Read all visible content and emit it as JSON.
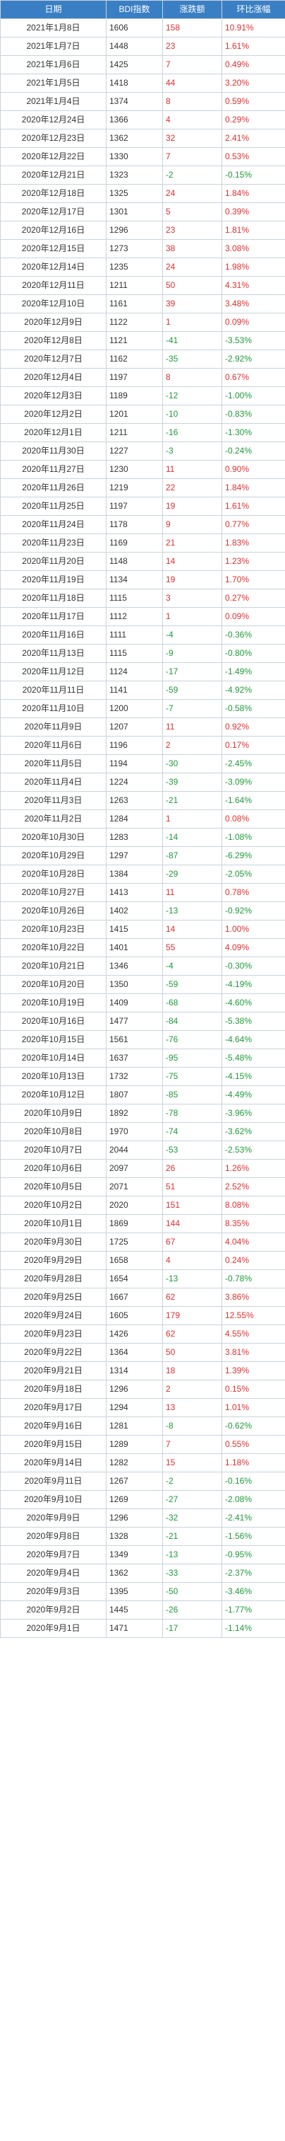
{
  "header": {
    "date": "日期",
    "index": "BDI指数",
    "change": "涨跌额",
    "pct": "环比涨幅"
  },
  "colors": {
    "header_bg": "#3a7fc4",
    "up": "#e03030",
    "down": "#1f9a3a"
  },
  "rows": [
    {
      "date": "2021年1月8日",
      "index": "1606",
      "change": "158",
      "pct": "10.91%"
    },
    {
      "date": "2021年1月7日",
      "index": "1448",
      "change": "23",
      "pct": "1.61%"
    },
    {
      "date": "2021年1月6日",
      "index": "1425",
      "change": "7",
      "pct": "0.49%"
    },
    {
      "date": "2021年1月5日",
      "index": "1418",
      "change": "44",
      "pct": "3.20%"
    },
    {
      "date": "2021年1月4日",
      "index": "1374",
      "change": "8",
      "pct": "0.59%"
    },
    {
      "date": "2020年12月24日",
      "index": "1366",
      "change": "4",
      "pct": "0.29%"
    },
    {
      "date": "2020年12月23日",
      "index": "1362",
      "change": "32",
      "pct": "2.41%"
    },
    {
      "date": "2020年12月22日",
      "index": "1330",
      "change": "7",
      "pct": "0.53%"
    },
    {
      "date": "2020年12月21日",
      "index": "1323",
      "change": "-2",
      "pct": "-0.15%"
    },
    {
      "date": "2020年12月18日",
      "index": "1325",
      "change": "24",
      "pct": "1.84%"
    },
    {
      "date": "2020年12月17日",
      "index": "1301",
      "change": "5",
      "pct": "0.39%"
    },
    {
      "date": "2020年12月16日",
      "index": "1296",
      "change": "23",
      "pct": "1.81%"
    },
    {
      "date": "2020年12月15日",
      "index": "1273",
      "change": "38",
      "pct": "3.08%"
    },
    {
      "date": "2020年12月14日",
      "index": "1235",
      "change": "24",
      "pct": "1.98%"
    },
    {
      "date": "2020年12月11日",
      "index": "1211",
      "change": "50",
      "pct": "4.31%"
    },
    {
      "date": "2020年12月10日",
      "index": "1161",
      "change": "39",
      "pct": "3.48%"
    },
    {
      "date": "2020年12月9日",
      "index": "1122",
      "change": "1",
      "pct": "0.09%"
    },
    {
      "date": "2020年12月8日",
      "index": "1121",
      "change": "-41",
      "pct": "-3.53%"
    },
    {
      "date": "2020年12月7日",
      "index": "1162",
      "change": "-35",
      "pct": "-2.92%"
    },
    {
      "date": "2020年12月4日",
      "index": "1197",
      "change": "8",
      "pct": "0.67%"
    },
    {
      "date": "2020年12月3日",
      "index": "1189",
      "change": "-12",
      "pct": "-1.00%"
    },
    {
      "date": "2020年12月2日",
      "index": "1201",
      "change": "-10",
      "pct": "-0.83%"
    },
    {
      "date": "2020年12月1日",
      "index": "1211",
      "change": "-16",
      "pct": "-1.30%"
    },
    {
      "date": "2020年11月30日",
      "index": "1227",
      "change": "-3",
      "pct": "-0.24%"
    },
    {
      "date": "2020年11月27日",
      "index": "1230",
      "change": "11",
      "pct": "0.90%"
    },
    {
      "date": "2020年11月26日",
      "index": "1219",
      "change": "22",
      "pct": "1.84%"
    },
    {
      "date": "2020年11月25日",
      "index": "1197",
      "change": "19",
      "pct": "1.61%"
    },
    {
      "date": "2020年11月24日",
      "index": "1178",
      "change": "9",
      "pct": "0.77%"
    },
    {
      "date": "2020年11月23日",
      "index": "1169",
      "change": "21",
      "pct": "1.83%"
    },
    {
      "date": "2020年11月20日",
      "index": "1148",
      "change": "14",
      "pct": "1.23%"
    },
    {
      "date": "2020年11月19日",
      "index": "1134",
      "change": "19",
      "pct": "1.70%"
    },
    {
      "date": "2020年11月18日",
      "index": "1115",
      "change": "3",
      "pct": "0.27%"
    },
    {
      "date": "2020年11月17日",
      "index": "1112",
      "change": "1",
      "pct": "0.09%"
    },
    {
      "date": "2020年11月16日",
      "index": "1111",
      "change": "-4",
      "pct": "-0.36%"
    },
    {
      "date": "2020年11月13日",
      "index": "1115",
      "change": "-9",
      "pct": "-0.80%"
    },
    {
      "date": "2020年11月12日",
      "index": "1124",
      "change": "-17",
      "pct": "-1.49%"
    },
    {
      "date": "2020年11月11日",
      "index": "1141",
      "change": "-59",
      "pct": "-4.92%"
    },
    {
      "date": "2020年11月10日",
      "index": "1200",
      "change": "-7",
      "pct": "-0.58%"
    },
    {
      "date": "2020年11月9日",
      "index": "1207",
      "change": "11",
      "pct": "0.92%"
    },
    {
      "date": "2020年11月6日",
      "index": "1196",
      "change": "2",
      "pct": "0.17%"
    },
    {
      "date": "2020年11月5日",
      "index": "1194",
      "change": "-30",
      "pct": "-2.45%"
    },
    {
      "date": "2020年11月4日",
      "index": "1224",
      "change": "-39",
      "pct": "-3.09%"
    },
    {
      "date": "2020年11月3日",
      "index": "1263",
      "change": "-21",
      "pct": "-1.64%"
    },
    {
      "date": "2020年11月2日",
      "index": "1284",
      "change": "1",
      "pct": "0.08%"
    },
    {
      "date": "2020年10月30日",
      "index": "1283",
      "change": "-14",
      "pct": "-1.08%"
    },
    {
      "date": "2020年10月29日",
      "index": "1297",
      "change": "-87",
      "pct": "-6.29%"
    },
    {
      "date": "2020年10月28日",
      "index": "1384",
      "change": "-29",
      "pct": "-2.05%"
    },
    {
      "date": "2020年10月27日",
      "index": "1413",
      "change": "11",
      "pct": "0.78%"
    },
    {
      "date": "2020年10月26日",
      "index": "1402",
      "change": "-13",
      "pct": "-0.92%"
    },
    {
      "date": "2020年10月23日",
      "index": "1415",
      "change": "14",
      "pct": "1.00%"
    },
    {
      "date": "2020年10月22日",
      "index": "1401",
      "change": "55",
      "pct": "4.09%"
    },
    {
      "date": "2020年10月21日",
      "index": "1346",
      "change": "-4",
      "pct": "-0.30%"
    },
    {
      "date": "2020年10月20日",
      "index": "1350",
      "change": "-59",
      "pct": "-4.19%"
    },
    {
      "date": "2020年10月19日",
      "index": "1409",
      "change": "-68",
      "pct": "-4.60%"
    },
    {
      "date": "2020年10月16日",
      "index": "1477",
      "change": "-84",
      "pct": "-5.38%"
    },
    {
      "date": "2020年10月15日",
      "index": "1561",
      "change": "-76",
      "pct": "-4.64%"
    },
    {
      "date": "2020年10月14日",
      "index": "1637",
      "change": "-95",
      "pct": "-5.48%"
    },
    {
      "date": "2020年10月13日",
      "index": "1732",
      "change": "-75",
      "pct": "-4.15%"
    },
    {
      "date": "2020年10月12日",
      "index": "1807",
      "change": "-85",
      "pct": "-4.49%"
    },
    {
      "date": "2020年10月9日",
      "index": "1892",
      "change": "-78",
      "pct": "-3.96%"
    },
    {
      "date": "2020年10月8日",
      "index": "1970",
      "change": "-74",
      "pct": "-3.62%"
    },
    {
      "date": "2020年10月7日",
      "index": "2044",
      "change": "-53",
      "pct": "-2.53%"
    },
    {
      "date": "2020年10月6日",
      "index": "2097",
      "change": "26",
      "pct": "1.26%"
    },
    {
      "date": "2020年10月5日",
      "index": "2071",
      "change": "51",
      "pct": "2.52%"
    },
    {
      "date": "2020年10月2日",
      "index": "2020",
      "change": "151",
      "pct": "8.08%"
    },
    {
      "date": "2020年10月1日",
      "index": "1869",
      "change": "144",
      "pct": "8.35%"
    },
    {
      "date": "2020年9月30日",
      "index": "1725",
      "change": "67",
      "pct": "4.04%"
    },
    {
      "date": "2020年9月29日",
      "index": "1658",
      "change": "4",
      "pct": "0.24%"
    },
    {
      "date": "2020年9月28日",
      "index": "1654",
      "change": "-13",
      "pct": "-0.78%"
    },
    {
      "date": "2020年9月25日",
      "index": "1667",
      "change": "62",
      "pct": "3.86%"
    },
    {
      "date": "2020年9月24日",
      "index": "1605",
      "change": "179",
      "pct": "12.55%"
    },
    {
      "date": "2020年9月23日",
      "index": "1426",
      "change": "62",
      "pct": "4.55%"
    },
    {
      "date": "2020年9月22日",
      "index": "1364",
      "change": "50",
      "pct": "3.81%"
    },
    {
      "date": "2020年9月21日",
      "index": "1314",
      "change": "18",
      "pct": "1.39%"
    },
    {
      "date": "2020年9月18日",
      "index": "1296",
      "change": "2",
      "pct": "0.15%"
    },
    {
      "date": "2020年9月17日",
      "index": "1294",
      "change": "13",
      "pct": "1.01%"
    },
    {
      "date": "2020年9月16日",
      "index": "1281",
      "change": "-8",
      "pct": "-0.62%"
    },
    {
      "date": "2020年9月15日",
      "index": "1289",
      "change": "7",
      "pct": "0.55%"
    },
    {
      "date": "2020年9月14日",
      "index": "1282",
      "change": "15",
      "pct": "1.18%"
    },
    {
      "date": "2020年9月11日",
      "index": "1267",
      "change": "-2",
      "pct": "-0.16%"
    },
    {
      "date": "2020年9月10日",
      "index": "1269",
      "change": "-27",
      "pct": "-2.08%"
    },
    {
      "date": "2020年9月9日",
      "index": "1296",
      "change": "-32",
      "pct": "-2.41%"
    },
    {
      "date": "2020年9月8日",
      "index": "1328",
      "change": "-21",
      "pct": "-1.56%"
    },
    {
      "date": "2020年9月7日",
      "index": "1349",
      "change": "-13",
      "pct": "-0.95%"
    },
    {
      "date": "2020年9月4日",
      "index": "1362",
      "change": "-33",
      "pct": "-2.37%"
    },
    {
      "date": "2020年9月3日",
      "index": "1395",
      "change": "-50",
      "pct": "-3.46%"
    },
    {
      "date": "2020年9月2日",
      "index": "1445",
      "change": "-26",
      "pct": "-1.77%"
    },
    {
      "date": "2020年9月1日",
      "index": "1471",
      "change": "-17",
      "pct": "-1.14%"
    }
  ]
}
